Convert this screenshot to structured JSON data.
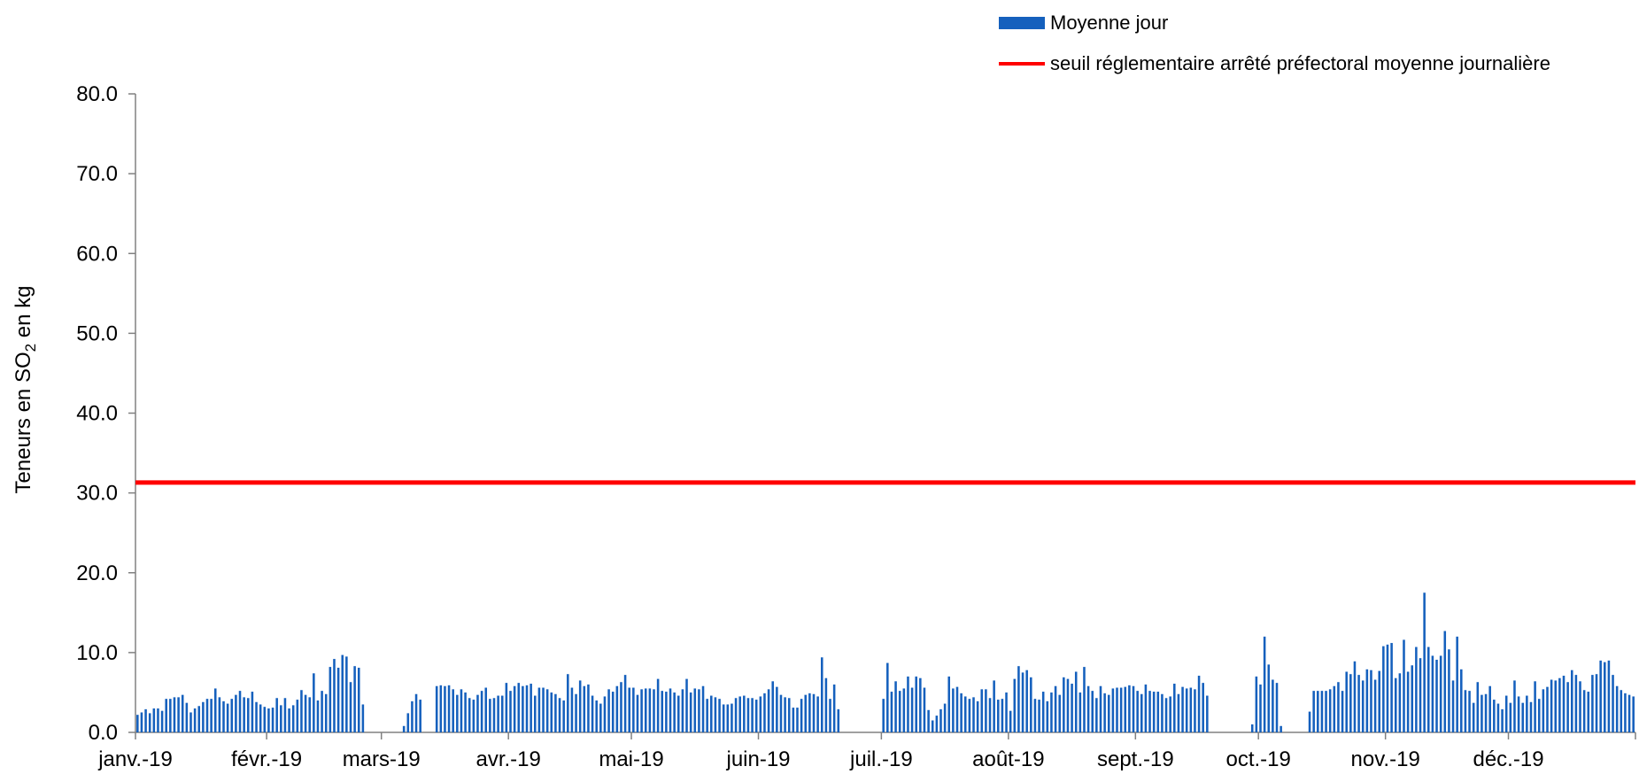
{
  "legend": {
    "bar_label": "Moyenne jour",
    "line_label": "seuil réglementaire arrêté préfectoral moyenne journalière"
  },
  "colors": {
    "bar": "#1560BD",
    "threshold": "#FF0000",
    "axis": "#808080"
  },
  "chart_data": {
    "type": "bar",
    "title": "",
    "ylabel": "Teneurs en SO2 en kg",
    "ylim": [
      0,
      80
    ],
    "yticks": [
      "0.0",
      "10.0",
      "20.0",
      "30.0",
      "40.0",
      "50.0",
      "60.0",
      "70.0",
      "80.0"
    ],
    "xticks": [
      "janv.-19",
      "févr.-19",
      "mars-19",
      "avr.-19",
      "mai-19",
      "juin-19",
      "juil.-19",
      "août-19",
      "sept.-19",
      "oct.-19",
      "nov.-19",
      "déc.-19"
    ],
    "threshold": 31.3,
    "series": [
      {
        "name": "Moyenne jour",
        "values": [
          [
            2.2,
            2.5,
            2.9,
            2.4,
            3.0,
            3.0,
            2.7,
            4.2,
            4.2,
            4.4,
            4.4,
            4.7,
            3.7,
            2.5,
            3.0,
            3.3,
            3.8,
            4.2,
            4.2,
            5.5,
            4.4,
            3.9,
            3.6,
            4.2,
            4.7,
            5.2,
            4.4,
            4.3,
            5.1,
            3.8,
            3.5,
            3.2
          ],
          [
            3.0,
            3.1,
            4.3,
            3.4,
            4.3,
            3.0,
            3.4,
            4.1,
            5.3,
            4.7,
            4.4,
            7.4,
            4.0,
            5.2,
            4.8,
            8.2,
            9.2,
            8.1,
            9.7,
            9.5,
            6.3,
            8.3,
            8.1,
            3.5,
            null,
            null,
            null,
            null
          ],
          [
            null,
            null,
            null,
            null,
            null,
            0.8,
            2.4,
            3.9,
            4.8,
            4.1,
            null,
            null,
            null,
            5.8,
            5.9,
            5.8,
            5.9,
            5.4,
            4.7,
            5.4,
            5.0,
            4.3,
            4.1,
            4.7,
            5.2,
            5.6,
            4.2,
            4.3,
            4.6,
            4.6,
            6.2
          ],
          [
            5.2,
            5.8,
            6.2,
            5.8,
            5.9,
            6.1,
            4.6,
            5.6,
            5.6,
            5.4,
            5.0,
            4.8,
            4.3,
            4.0,
            7.3,
            5.6,
            4.8,
            6.5,
            5.8,
            6.0,
            4.6,
            4.0,
            3.6,
            4.5,
            5.4,
            5.1,
            5.8,
            6.3,
            7.2,
            5.6
          ],
          [
            5.6,
            4.7,
            5.4,
            5.5,
            5.5,
            5.4,
            6.7,
            5.2,
            5.1,
            5.5,
            5.0,
            4.6,
            5.4,
            6.7,
            5.0,
            5.5,
            5.4,
            5.8,
            4.2,
            4.6,
            4.4,
            4.2,
            3.5,
            3.5,
            3.6,
            4.3,
            4.5,
            4.6,
            4.3,
            4.3,
            4.1
          ],
          [
            4.5,
            4.9,
            5.4,
            6.4,
            5.7,
            4.7,
            4.4,
            4.3,
            3.1,
            3.1,
            4.2,
            4.7,
            4.9,
            4.8,
            4.5,
            9.4,
            6.8,
            4.2,
            6.0,
            2.9,
            null,
            null,
            null,
            null,
            null,
            null,
            null,
            null,
            null,
            null
          ],
          [
            4.2,
            8.7,
            5.1,
            6.4,
            5.2,
            5.5,
            7.0,
            5.6,
            7.0,
            6.8,
            5.6,
            2.8,
            1.5,
            2.1,
            2.9,
            3.6,
            7.0,
            5.5,
            5.7,
            4.9,
            4.5,
            4.2,
            4.4,
            3.9,
            5.4,
            5.4,
            4.3,
            6.5,
            4.1,
            4.2,
            5.0
          ],
          [
            2.7,
            6.7,
            8.3,
            7.5,
            7.8,
            6.9,
            4.2,
            4.1,
            5.1,
            3.9,
            5.0,
            5.8,
            4.7,
            6.9,
            6.7,
            6.1,
            7.6,
            5.0,
            8.2,
            5.8,
            5.2,
            4.3,
            5.8,
            4.9,
            4.7,
            5.5,
            5.6,
            5.6,
            5.7,
            5.9,
            5.8
          ],
          [
            5.2,
            4.8,
            6.0,
            5.2,
            5.1,
            5.1,
            4.8,
            4.3,
            4.5,
            6.1,
            4.8,
            5.7,
            5.5,
            5.6,
            5.4,
            7.1,
            6.2,
            4.6,
            null,
            null,
            null,
            null,
            null,
            null,
            null,
            null,
            null,
            null,
            1.0,
            7.0
          ],
          [
            6.0,
            12.0,
            8.5,
            6.6,
            6.2,
            0.8,
            null,
            null,
            null,
            null,
            null,
            null,
            2.6,
            5.2,
            5.2,
            5.2,
            5.2,
            5.4,
            5.8,
            6.3,
            5.2,
            7.6,
            7.3,
            8.9,
            7.2,
            6.5,
            7.9,
            7.8,
            6.6,
            7.7,
            10.8
          ],
          [
            11.0,
            11.2,
            6.8,
            7.4,
            11.6,
            7.6,
            8.4,
            10.7,
            9.3,
            17.5,
            10.7,
            9.6,
            9.1,
            9.6,
            12.7,
            10.4,
            6.5,
            12.0,
            7.9,
            5.3,
            5.2,
            3.7,
            6.3,
            4.7,
            4.8,
            5.8,
            4.1,
            3.6,
            2.9,
            4.6
          ],
          [
            3.7,
            6.5,
            4.5,
            3.7,
            4.6,
            3.8,
            6.4,
            4.2,
            5.4,
            5.7,
            6.6,
            6.5,
            6.8,
            7.1,
            6.3,
            7.8,
            7.2,
            6.4,
            5.3,
            5.1,
            7.2,
            7.3,
            9.0,
            8.8,
            9.0,
            7.2,
            5.8,
            5.3,
            4.9,
            4.7,
            4.5
          ]
        ]
      },
      {
        "name": "seuil réglementaire arrêté préfectoral moyenne journalière",
        "value": 31.3
      }
    ],
    "grid": false,
    "legend_position": "top-right"
  }
}
